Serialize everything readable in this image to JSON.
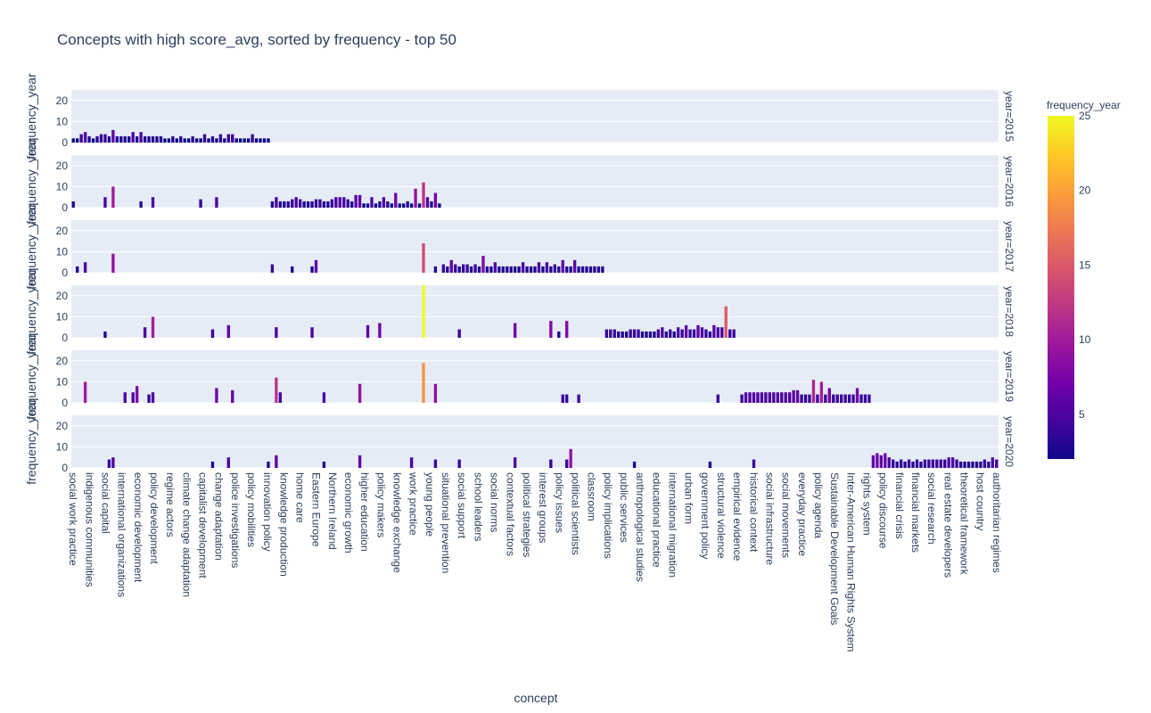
{
  "chart_data": {
    "type": "bar",
    "title": "Concepts with high score_avg, sorted by frequency - top 50",
    "xlabel": "concept",
    "ylabel": "frequency_year",
    "ylim": [
      0,
      25
    ],
    "yticks": [
      0,
      10,
      20
    ],
    "x_tick_labels": [
      "social work practice",
      "indigenous communities",
      "social capital",
      "international organizations",
      "economic development",
      "policy development",
      "regime actors",
      "climate change adaptation",
      "capitalist development",
      "change adaptation",
      "police investigations",
      "policy mobilities",
      "innovation policy",
      "knowledge production",
      "home care",
      "Eastern Europe",
      "Northern Ireland",
      "economic growth",
      "higher education",
      "policy makers",
      "knowledge exchange",
      "work practice",
      "young people",
      "situational prevention",
      "social support",
      "school leaders",
      "social norms",
      "contextual factors",
      "political strategies",
      "interest groups",
      "policy issues",
      "political scientists",
      "classroom",
      "policy implications",
      "public services",
      "anthropological studies",
      "educational practice",
      "international migration",
      "urban form",
      "government policy",
      "structural violence",
      "empirical evidence",
      "historical context",
      "social infrastructure",
      "social movements",
      "everyday practice",
      "policy agenda",
      "Sustainable Development Goals",
      "Inter-American Human Rights System",
      "rights system",
      "policy discourse",
      "financial crisis",
      "financial markets",
      "social research",
      "real estate developers",
      "theoretical framework",
      "host country",
      "authoritarian regimes"
    ],
    "facet_var": "year",
    "facets": [
      {
        "label": "year=2015",
        "bars": [
          [
            0,
            2
          ],
          [
            1,
            2
          ],
          [
            2,
            4
          ],
          [
            3,
            5
          ],
          [
            4,
            3
          ],
          [
            5,
            2
          ],
          [
            6,
            3
          ],
          [
            7,
            4
          ],
          [
            8,
            4
          ],
          [
            9,
            3
          ],
          [
            10,
            6
          ],
          [
            11,
            3
          ],
          [
            12,
            3
          ],
          [
            13,
            3
          ],
          [
            14,
            3
          ],
          [
            15,
            5
          ],
          [
            16,
            3
          ],
          [
            17,
            5
          ],
          [
            18,
            3
          ],
          [
            19,
            3
          ],
          [
            20,
            3
          ],
          [
            21,
            3
          ],
          [
            22,
            3
          ],
          [
            23,
            2
          ],
          [
            24,
            2
          ],
          [
            25,
            3
          ],
          [
            26,
            2
          ],
          [
            27,
            3
          ],
          [
            28,
            2
          ],
          [
            29,
            2
          ],
          [
            30,
            3
          ],
          [
            31,
            2
          ],
          [
            32,
            2
          ],
          [
            33,
            4
          ],
          [
            34,
            2
          ],
          [
            35,
            3
          ],
          [
            36,
            2
          ],
          [
            37,
            4
          ],
          [
            38,
            2
          ],
          [
            39,
            4
          ],
          [
            40,
            4
          ],
          [
            41,
            2
          ],
          [
            42,
            2
          ],
          [
            43,
            2
          ],
          [
            44,
            2
          ],
          [
            45,
            4
          ],
          [
            46,
            2
          ],
          [
            47,
            2
          ],
          [
            48,
            2
          ],
          [
            49,
            2
          ]
        ]
      },
      {
        "label": "year=2016",
        "bars": [
          [
            0,
            3
          ],
          [
            8,
            5
          ],
          [
            10,
            10
          ],
          [
            17,
            3
          ],
          [
            20,
            5
          ],
          [
            32,
            4
          ],
          [
            36,
            5
          ],
          [
            50,
            3
          ],
          [
            51,
            5
          ],
          [
            52,
            3
          ],
          [
            53,
            3
          ],
          [
            54,
            3
          ],
          [
            55,
            4
          ],
          [
            56,
            5
          ],
          [
            57,
            4
          ],
          [
            58,
            3
          ],
          [
            59,
            3
          ],
          [
            60,
            3
          ],
          [
            61,
            4
          ],
          [
            62,
            4
          ],
          [
            63,
            3
          ],
          [
            64,
            3
          ],
          [
            65,
            4
          ],
          [
            66,
            5
          ],
          [
            67,
            5
          ],
          [
            68,
            5
          ],
          [
            69,
            4
          ],
          [
            70,
            3
          ],
          [
            71,
            6
          ],
          [
            72,
            6
          ],
          [
            73,
            2
          ],
          [
            74,
            2
          ],
          [
            75,
            5
          ],
          [
            76,
            2
          ],
          [
            77,
            3
          ],
          [
            78,
            5
          ],
          [
            79,
            3
          ],
          [
            80,
            2
          ],
          [
            81,
            7
          ],
          [
            82,
            2
          ],
          [
            83,
            2
          ],
          [
            84,
            3
          ],
          [
            85,
            2
          ],
          [
            86,
            9
          ],
          [
            87,
            2
          ],
          [
            88,
            12
          ],
          [
            89,
            5
          ],
          [
            90,
            3
          ],
          [
            91,
            7
          ],
          [
            92,
            2
          ]
        ]
      },
      {
        "label": "year=2017",
        "bars": [
          [
            1,
            3
          ],
          [
            3,
            5
          ],
          [
            10,
            9
          ],
          [
            50,
            4
          ],
          [
            55,
            3
          ],
          [
            60,
            3
          ],
          [
            61,
            6
          ],
          [
            88,
            14
          ],
          [
            91,
            3
          ],
          [
            93,
            4
          ],
          [
            94,
            3
          ],
          [
            95,
            6
          ],
          [
            96,
            4
          ],
          [
            97,
            3
          ],
          [
            98,
            4
          ],
          [
            99,
            4
          ],
          [
            100,
            3
          ],
          [
            101,
            4
          ],
          [
            102,
            3
          ],
          [
            103,
            8
          ],
          [
            104,
            3
          ],
          [
            105,
            3
          ],
          [
            106,
            5
          ],
          [
            107,
            3
          ],
          [
            108,
            3
          ],
          [
            109,
            3
          ],
          [
            110,
            3
          ],
          [
            111,
            3
          ],
          [
            112,
            3
          ],
          [
            113,
            5
          ],
          [
            114,
            3
          ],
          [
            115,
            3
          ],
          [
            116,
            3
          ],
          [
            117,
            5
          ],
          [
            118,
            3
          ],
          [
            119,
            5
          ],
          [
            120,
            3
          ],
          [
            121,
            4
          ],
          [
            122,
            3
          ],
          [
            123,
            6
          ],
          [
            124,
            3
          ],
          [
            125,
            3
          ],
          [
            126,
            6
          ],
          [
            127,
            3
          ],
          [
            128,
            3
          ],
          [
            129,
            3
          ],
          [
            130,
            3
          ],
          [
            131,
            3
          ],
          [
            132,
            3
          ],
          [
            133,
            3
          ]
        ]
      },
      {
        "label": "year=2018",
        "bars": [
          [
            8,
            3
          ],
          [
            18,
            5
          ],
          [
            20,
            10
          ],
          [
            35,
            4
          ],
          [
            39,
            6
          ],
          [
            51,
            5
          ],
          [
            60,
            5
          ],
          [
            74,
            6
          ],
          [
            77,
            7
          ],
          [
            88,
            25
          ],
          [
            97,
            4
          ],
          [
            111,
            7
          ],
          [
            120,
            8
          ],
          [
            122,
            3
          ],
          [
            124,
            8
          ],
          [
            134,
            4
          ],
          [
            135,
            4
          ],
          [
            136,
            4
          ],
          [
            137,
            3
          ],
          [
            138,
            3
          ],
          [
            139,
            3
          ],
          [
            140,
            4
          ],
          [
            141,
            4
          ],
          [
            142,
            4
          ],
          [
            143,
            3
          ],
          [
            144,
            3
          ],
          [
            145,
            3
          ],
          [
            146,
            3
          ],
          [
            147,
            4
          ],
          [
            148,
            5
          ],
          [
            149,
            3
          ],
          [
            150,
            4
          ],
          [
            151,
            3
          ],
          [
            152,
            5
          ],
          [
            153,
            4
          ],
          [
            154,
            6
          ],
          [
            155,
            4
          ],
          [
            156,
            4
          ],
          [
            157,
            6
          ],
          [
            158,
            5
          ],
          [
            159,
            4
          ],
          [
            160,
            3
          ],
          [
            161,
            6
          ],
          [
            162,
            5
          ],
          [
            163,
            5
          ],
          [
            164,
            15
          ],
          [
            165,
            4
          ],
          [
            166,
            4
          ]
        ]
      },
      {
        "label": "year=2019",
        "bars": [
          [
            3,
            10
          ],
          [
            13,
            5
          ],
          [
            15,
            5
          ],
          [
            16,
            8
          ],
          [
            19,
            4
          ],
          [
            20,
            5
          ],
          [
            36,
            7
          ],
          [
            40,
            6
          ],
          [
            51,
            12
          ],
          [
            52,
            5
          ],
          [
            63,
            5
          ],
          [
            72,
            9
          ],
          [
            88,
            19
          ],
          [
            91,
            9
          ],
          [
            123,
            4
          ],
          [
            124,
            4
          ],
          [
            127,
            4
          ],
          [
            162,
            4
          ],
          [
            168,
            4
          ],
          [
            169,
            5
          ],
          [
            170,
            5
          ],
          [
            171,
            5
          ],
          [
            172,
            5
          ],
          [
            173,
            5
          ],
          [
            174,
            5
          ],
          [
            175,
            5
          ],
          [
            176,
            5
          ],
          [
            177,
            5
          ],
          [
            178,
            5
          ],
          [
            179,
            5
          ],
          [
            180,
            5
          ],
          [
            181,
            6
          ],
          [
            182,
            6
          ],
          [
            183,
            4
          ],
          [
            184,
            4
          ],
          [
            185,
            4
          ],
          [
            186,
            11
          ],
          [
            187,
            4
          ],
          [
            188,
            10
          ],
          [
            189,
            4
          ],
          [
            190,
            7
          ],
          [
            191,
            4
          ],
          [
            192,
            4
          ],
          [
            193,
            4
          ],
          [
            194,
            4
          ],
          [
            195,
            4
          ],
          [
            196,
            4
          ],
          [
            197,
            7
          ],
          [
            198,
            4
          ],
          [
            199,
            4
          ],
          [
            200,
            4
          ]
        ]
      },
      {
        "label": "year=2020",
        "bars": [
          [
            9,
            4
          ],
          [
            10,
            5
          ],
          [
            35,
            3
          ],
          [
            39,
            5
          ],
          [
            49,
            3
          ],
          [
            51,
            6
          ],
          [
            63,
            3
          ],
          [
            72,
            6
          ],
          [
            85,
            5
          ],
          [
            91,
            4
          ],
          [
            97,
            4
          ],
          [
            111,
            5
          ],
          [
            120,
            4
          ],
          [
            124,
            4
          ],
          [
            125,
            9
          ],
          [
            141,
            3
          ],
          [
            160,
            3
          ],
          [
            171,
            4
          ],
          [
            201,
            6
          ],
          [
            202,
            7
          ],
          [
            203,
            6
          ],
          [
            204,
            7
          ],
          [
            205,
            5
          ],
          [
            206,
            4
          ],
          [
            207,
            3
          ],
          [
            208,
            4
          ],
          [
            209,
            3
          ],
          [
            210,
            4
          ],
          [
            211,
            3
          ],
          [
            212,
            4
          ],
          [
            213,
            3
          ],
          [
            214,
            4
          ],
          [
            215,
            4
          ],
          [
            216,
            4
          ],
          [
            217,
            4
          ],
          [
            218,
            4
          ],
          [
            219,
            4
          ],
          [
            220,
            5
          ],
          [
            221,
            5
          ],
          [
            222,
            4
          ],
          [
            223,
            3
          ],
          [
            224,
            3
          ],
          [
            225,
            3
          ],
          [
            226,
            3
          ],
          [
            227,
            3
          ],
          [
            228,
            3
          ],
          [
            229,
            4
          ],
          [
            230,
            3
          ],
          [
            231,
            5
          ],
          [
            232,
            4
          ]
        ]
      }
    ],
    "n_categories": 233,
    "colorbar": {
      "title": "frequency_year",
      "range": [
        2,
        25
      ],
      "ticks": [
        5,
        10,
        15,
        20,
        25
      ]
    },
    "colorscale": [
      "#0d0887",
      "#46039f",
      "#7201a8",
      "#9c179e",
      "#bd3786",
      "#d8576b",
      "#ed7953",
      "#fb9f3a",
      "#fdca26",
      "#f0f921"
    ],
    "plot_bg": "#e5ecf6",
    "grid": true,
    "legend": "colorbar-right"
  }
}
